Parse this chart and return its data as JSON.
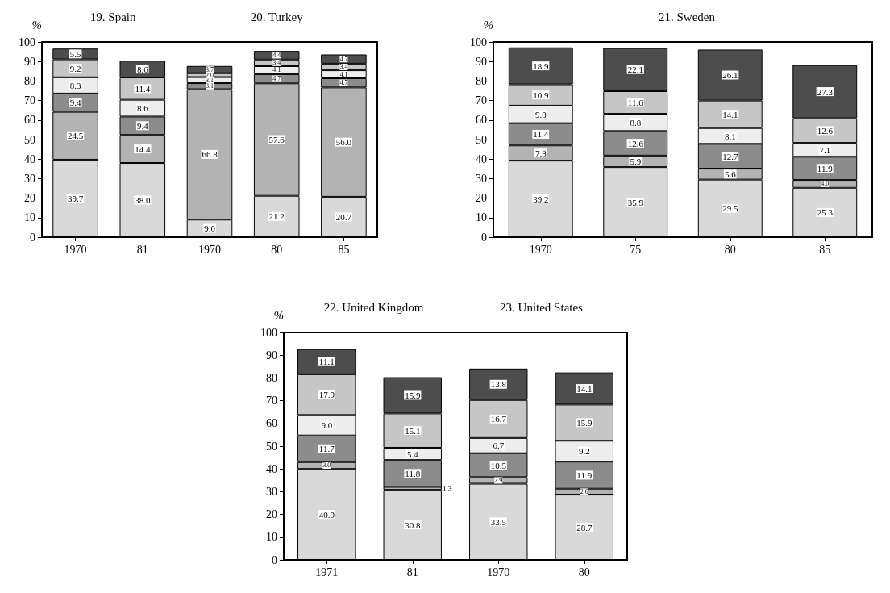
{
  "chart_data": [
    {
      "type": "bar",
      "title": "19. Spain",
      "ylabel": "%",
      "stacked": true,
      "categories": [
        "1970",
        "81",
        "1970",
        "80",
        "85"
      ],
      "ylim": [
        0,
        100
      ],
      "yticks": [
        0,
        10,
        20,
        30,
        40,
        50,
        60,
        70,
        80,
        90,
        100
      ],
      "grid": false,
      "annotations": [
        "20. Turkey"
      ],
      "series": [
        {
          "color": "#d9d9d9",
          "values": [
            39.7,
            38.0,
            9.0,
            21.2,
            20.7
          ],
          "value_labels": [
            "39.7",
            "38.0",
            "9.0",
            "21.2",
            "20.7"
          ]
        },
        {
          "color": "#b3b3b3",
          "values": [
            24.5,
            14.4,
            66.8,
            57.6,
            56.0
          ],
          "value_labels": [
            "24.5",
            "14.4",
            "66.8",
            "57.6",
            "56.0"
          ]
        },
        {
          "color": "#8c8c8c",
          "values": [
            9.4,
            9.4,
            3.1,
            4.7,
            4.7
          ],
          "value_labels": [
            "9.4",
            "9.4",
            "3.1",
            "4.7",
            "4.7"
          ]
        },
        {
          "color": "#ededed",
          "values": [
            8.3,
            8.6,
            3.1,
            4.1,
            4.1
          ],
          "value_labels": [
            "8.3",
            "8.6",
            "3.1",
            "4.1",
            "4.1"
          ]
        },
        {
          "color": "#c6c6c6",
          "values": [
            9.2,
            11.4,
            2.0,
            3.4,
            3.4
          ],
          "value_labels": [
            "9.2",
            "11.4",
            "2.0",
            "3.4",
            "3.4"
          ]
        },
        {
          "color": "#4d4d4d",
          "values": [
            5.5,
            8.6,
            3.7,
            4.4,
            4.7
          ],
          "value_labels": [
            "5.5",
            "8.6",
            "3.7",
            "4.4",
            "4.7"
          ]
        }
      ]
    },
    {
      "type": "bar",
      "title": "21. Sweden",
      "ylabel": "%",
      "stacked": true,
      "categories": [
        "1970",
        "75",
        "80",
        "85"
      ],
      "ylim": [
        0,
        100
      ],
      "yticks": [
        0,
        10,
        20,
        30,
        40,
        50,
        60,
        70,
        80,
        90,
        100
      ],
      "grid": false,
      "series": [
        {
          "color": "#d9d9d9",
          "values": [
            39.2,
            35.9,
            29.5,
            25.3
          ],
          "value_labels": [
            "39.2",
            "35.9",
            "29.5",
            "25.3"
          ]
        },
        {
          "color": "#b3b3b3",
          "values": [
            7.8,
            5.9,
            5.6,
            4.0
          ],
          "value_labels": [
            "7.8",
            "5.9",
            "5.6",
            "4.0"
          ]
        },
        {
          "color": "#8c8c8c",
          "values": [
            11.4,
            12.6,
            12.7,
            11.9
          ],
          "value_labels": [
            "11.4",
            "12.6",
            "12.7",
            "11.9"
          ]
        },
        {
          "color": "#ededed",
          "values": [
            9.0,
            8.8,
            8.1,
            7.1
          ],
          "value_labels": [
            "9.0",
            "8.8",
            "8.1",
            "7.1"
          ]
        },
        {
          "color": "#c6c6c6",
          "values": [
            10.9,
            11.6,
            14.1,
            12.6
          ],
          "value_labels": [
            "10.9",
            "11.6",
            "14.1",
            "12.6"
          ]
        },
        {
          "color": "#4d4d4d",
          "values": [
            18.9,
            22.1,
            26.1,
            27.3
          ],
          "value_labels": [
            "18.9",
            "22.1",
            "26.1",
            "27.3"
          ]
        }
      ]
    },
    {
      "type": "bar",
      "title": "22. United Kingdom",
      "ylabel": "%",
      "stacked": true,
      "categories": [
        "1971",
        "81",
        "1970",
        "80"
      ],
      "ylim": [
        0,
        100
      ],
      "yticks": [
        0,
        10,
        20,
        30,
        40,
        50,
        60,
        70,
        80,
        90,
        100
      ],
      "grid": false,
      "annotations": [
        "23. United States"
      ],
      "series": [
        {
          "color": "#d9d9d9",
          "values": [
            40.0,
            30.8,
            33.5,
            28.7
          ],
          "value_labels": [
            "40.0",
            "30.8",
            "33.5",
            "28.7"
          ]
        },
        {
          "color": "#b3b3b3",
          "values": [
            3.0,
            1.3,
            2.9,
            2.6
          ],
          "value_labels": [
            "3.0",
            "1.3",
            "2.9",
            "2.6"
          ]
        },
        {
          "color": "#8c8c8c",
          "values": [
            11.7,
            11.8,
            10.5,
            11.9
          ],
          "value_labels": [
            "11.7",
            "11.8",
            "10.5",
            "11.9"
          ]
        },
        {
          "color": "#ededed",
          "values": [
            9.0,
            5.4,
            6.7,
            9.2
          ],
          "value_labels": [
            "9.0",
            "5.4",
            "6.7",
            "9.2"
          ]
        },
        {
          "color": "#c6c6c6",
          "values": [
            17.9,
            15.1,
            16.7,
            15.9
          ],
          "value_labels": [
            "17.9",
            "15.1",
            "16.7",
            "15.9"
          ]
        },
        {
          "color": "#4d4d4d",
          "values": [
            11.1,
            15.9,
            13.8,
            14.1
          ],
          "value_labels": [
            "11.1",
            "15.9",
            "13.8",
            "14.1"
          ]
        }
      ]
    }
  ]
}
